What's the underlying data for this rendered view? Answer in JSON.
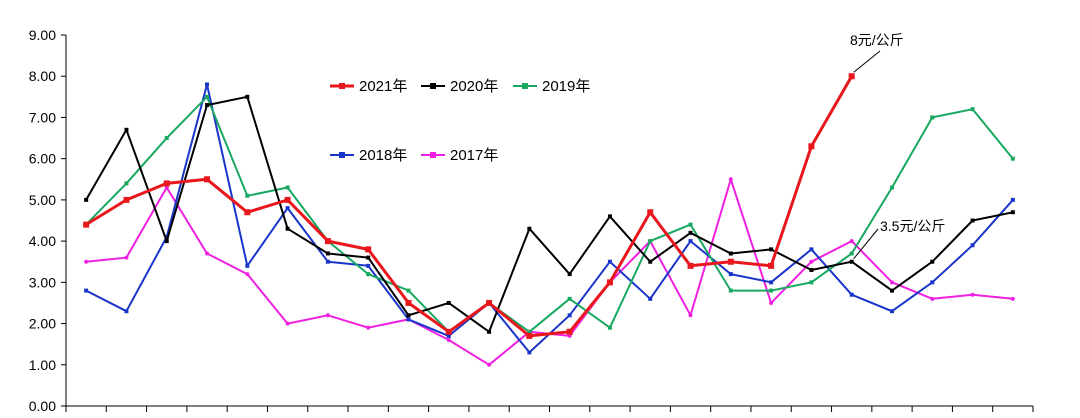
{
  "chart_data": {
    "type": "line",
    "title": "",
    "xlabel": "",
    "ylabel": "",
    "ylim": [
      0,
      9
    ],
    "y_ticks": [
      "0.00",
      "1.00",
      "2.00",
      "3.00",
      "4.00",
      "5.00",
      "6.00",
      "7.00",
      "8.00",
      "9.00"
    ],
    "x_count": 24,
    "grid": false,
    "legend": "inside-top-left",
    "series": [
      {
        "name": "2021年",
        "color": "#e8171c",
        "values": [
          4.4,
          5.0,
          5.4,
          5.5,
          4.7,
          5.0,
          4.0,
          3.8,
          2.5,
          1.8,
          2.5,
          1.7,
          1.8,
          3.0,
          4.7,
          3.4,
          3.5,
          3.4,
          6.3,
          8.0,
          null,
          null,
          null,
          null
        ]
      },
      {
        "name": "2020年",
        "color": "#000000",
        "values": [
          5.0,
          6.7,
          4.0,
          7.3,
          7.5,
          4.3,
          3.7,
          3.6,
          2.2,
          2.5,
          1.8,
          4.3,
          3.2,
          4.6,
          3.5,
          4.2,
          3.7,
          3.8,
          3.3,
          3.5,
          2.8,
          3.5,
          4.5,
          4.7
        ]
      },
      {
        "name": "2019年",
        "color": "#18a860",
        "values": [
          4.4,
          5.4,
          6.5,
          7.5,
          5.1,
          5.3,
          4.0,
          3.2,
          2.8,
          1.8,
          2.5,
          1.8,
          2.6,
          1.9,
          4.0,
          4.4,
          2.8,
          2.8,
          3.0,
          3.7,
          5.3,
          7.0,
          7.2,
          6.0
        ]
      },
      {
        "name": "2018年",
        "color": "#1a35c9",
        "values": [
          2.8,
          2.3,
          4.1,
          7.8,
          3.4,
          4.8,
          3.5,
          3.4,
          2.1,
          1.7,
          2.5,
          1.3,
          2.2,
          3.5,
          2.6,
          4.0,
          3.2,
          3.0,
          3.8,
          2.7,
          2.3,
          3.0,
          3.9,
          5.0
        ]
      },
      {
        "name": "2017年",
        "color": "#f020e0",
        "values": [
          3.5,
          3.6,
          5.3,
          3.7,
          3.2,
          2.0,
          2.2,
          1.9,
          2.1,
          1.6,
          1.0,
          1.8,
          1.7,
          3.0,
          4.0,
          2.2,
          5.5,
          2.5,
          3.5,
          4.0,
          3.0,
          2.6,
          2.7,
          2.6
        ]
      }
    ],
    "annotations": [
      {
        "text": "8元/公斤",
        "target_series": 0,
        "target_index": 19
      },
      {
        "text": "3.5元/公斤",
        "target_series": 1,
        "target_index": 19
      }
    ]
  }
}
